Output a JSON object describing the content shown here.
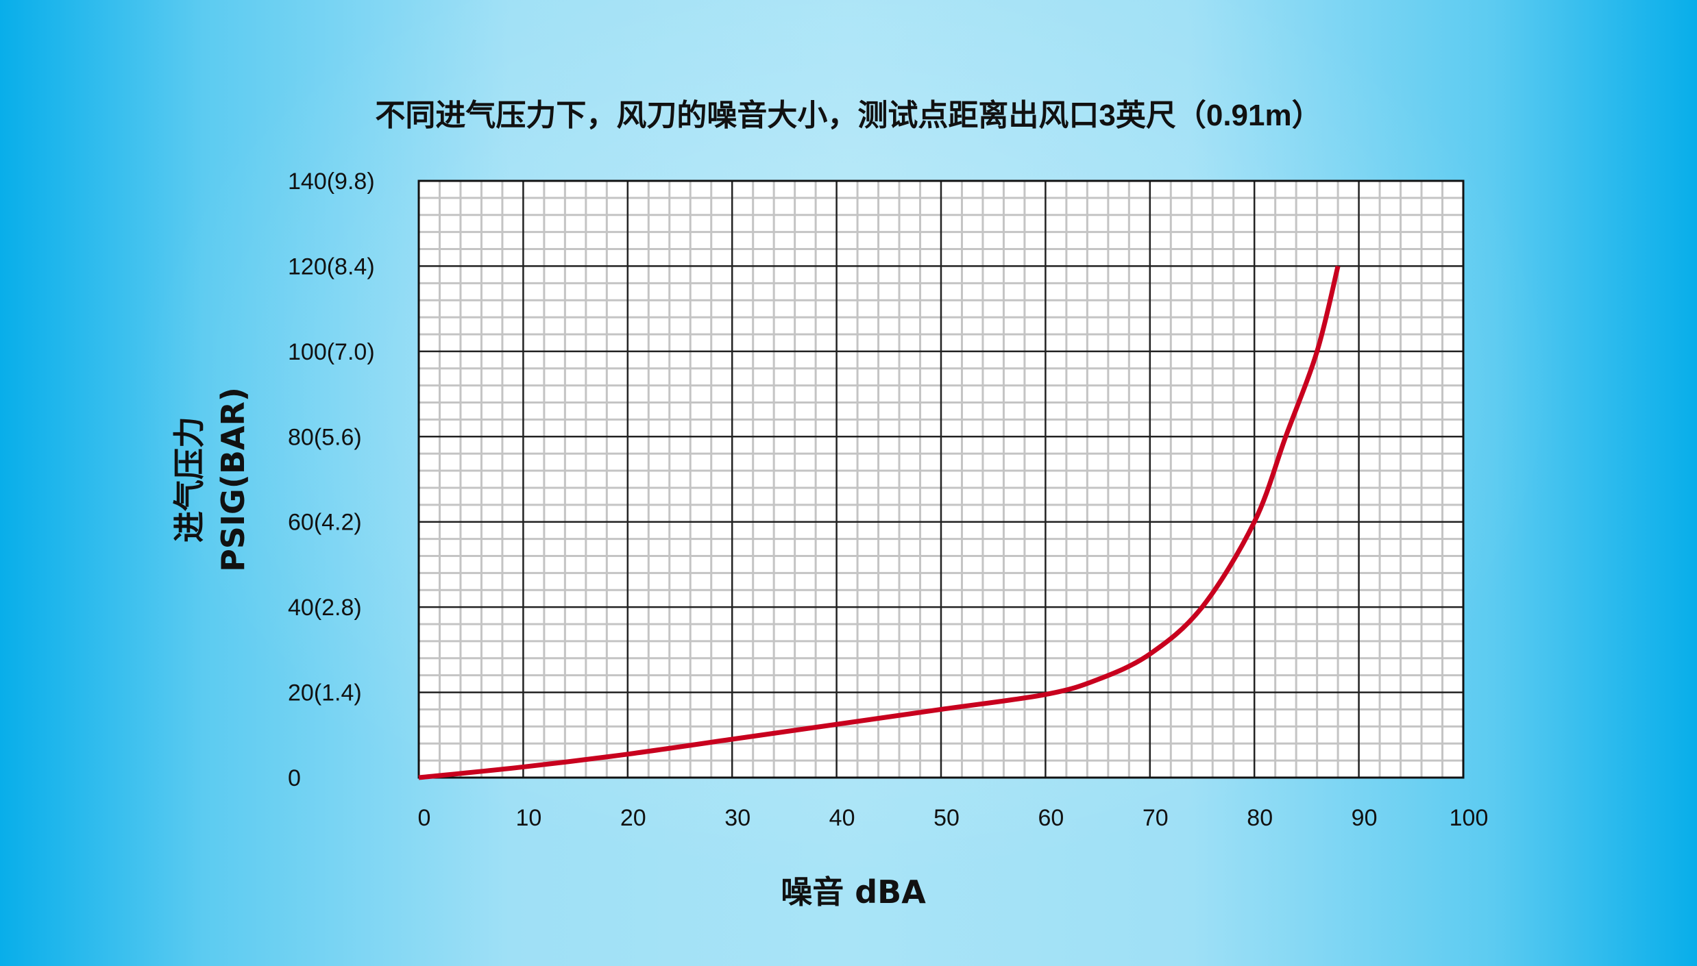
{
  "chart_data": {
    "type": "line",
    "title": "不同进气压力下，风刀的噪音大小，测试点距离出风口3英尺（0.91m）",
    "xlabel": "噪音 dBA",
    "ylabel": [
      "进气压力",
      "PSIG(BAR)"
    ],
    "xlim": [
      0,
      100
    ],
    "ylim": [
      0,
      140
    ],
    "x_ticks": [
      "0",
      "10",
      "20",
      "30",
      "40",
      "50",
      "60",
      "70",
      "80",
      "90",
      "100"
    ],
    "y_ticks": [
      "0",
      "20(1.4)",
      "40(2.8)",
      "60(4.2)",
      "80(5.6)",
      "100(7.0)",
      "120(8.4)",
      "140(9.8)"
    ],
    "grid": true,
    "line_color": "#c8001e",
    "series": [
      {
        "x": [
          0,
          10,
          20,
          30,
          40,
          50,
          60,
          65,
          70,
          75,
          80,
          83,
          86,
          88
        ],
        "y": [
          0,
          2.5,
          5.5,
          9,
          12.5,
          16,
          19.5,
          23,
          29,
          40,
          60,
          80,
          100,
          120
        ]
      }
    ]
  }
}
